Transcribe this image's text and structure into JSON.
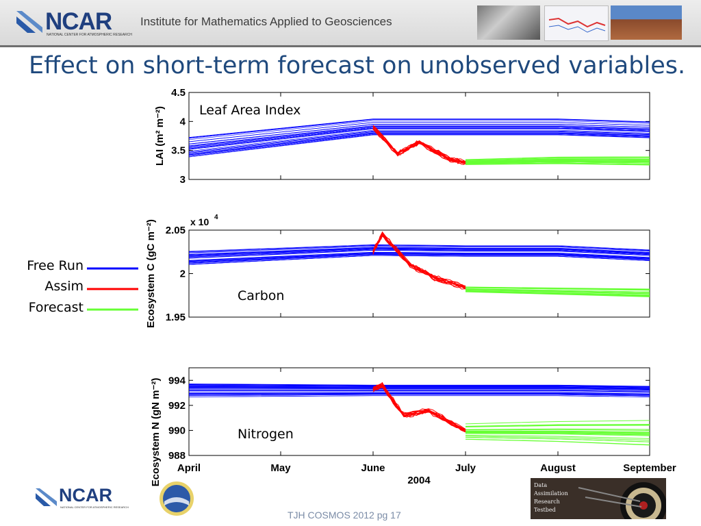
{
  "header": {
    "logo_text": "NCAR",
    "logo_subtext": "NATIONAL CENTER FOR ATMOSPHERIC RESEARCH",
    "institute": "Institute for Mathematics Applied to Geosciences"
  },
  "slide_title": "Effect on short-term forecast on unobserved variables.",
  "legend": {
    "items": [
      {
        "label": "Free Run",
        "color": "#0000ff"
      },
      {
        "label": "Assim",
        "color": "#ff0000"
      },
      {
        "label": "Forecast",
        "color": "#66ff33"
      }
    ]
  },
  "chart_data": {
    "type": "line",
    "x_ticks": [
      "April",
      "May",
      "June",
      "July",
      "August",
      "September"
    ],
    "xlabel": "2004",
    "panels": [
      {
        "annotation": "Leaf Area Index",
        "ylabel": "LAI (m² m⁻²)",
        "ylim": [
          3,
          4.5
        ],
        "yticks": [
          "3",
          "3.5",
          "4",
          "4.5"
        ],
        "series": [
          {
            "name": "Free Run",
            "color": "#0000ff",
            "x": [
              "April",
              "June",
              "July",
              "August",
              "September"
            ],
            "y": [
              3.55,
              3.9,
              3.9,
              3.9,
              3.85
            ]
          },
          {
            "name": "Assim",
            "color": "#ff0000",
            "x": [
              "June",
              "June+8d",
              "June+15d",
              "June+25d",
              "June+30d"
            ],
            "y": [
              3.9,
              3.45,
              3.65,
              3.35,
              3.3
            ]
          },
          {
            "name": "Forecast",
            "color": "#66ff33",
            "x": [
              "July",
              "August",
              "September"
            ],
            "y": [
              3.3,
              3.33,
              3.32
            ]
          }
        ]
      },
      {
        "annotation": "Carbon",
        "ylabel": "Ecosystem C (gC m⁻²)",
        "multiplier": "x 10",
        "multiplier_exp": "4",
        "ylim": [
          1.95,
          2.05
        ],
        "yticks": [
          "1.95",
          "2",
          "2.05"
        ],
        "series": [
          {
            "name": "Free Run",
            "color": "#0000ff",
            "x": [
              "April",
              "June",
              "July",
              "August",
              "September"
            ],
            "y": [
              2.018,
              2.027,
              2.026,
              2.026,
              2.021
            ]
          },
          {
            "name": "Assim",
            "color": "#ff0000",
            "x": [
              "June",
              "June+3d",
              "June+12d",
              "June+20d",
              "June+30d"
            ],
            "y": [
              2.025,
              2.045,
              2.01,
              1.995,
              1.984
            ]
          },
          {
            "name": "Forecast",
            "color": "#66ff33",
            "x": [
              "July",
              "August",
              "September"
            ],
            "y": [
              1.982,
              1.98,
              1.978
            ]
          }
        ]
      },
      {
        "annotation": "Nitrogen",
        "ylabel": "Ecosystem N (gN m⁻²)",
        "ylim": [
          988,
          995
        ],
        "yticks": [
          "988",
          "990",
          "992",
          "994"
        ],
        "series": [
          {
            "name": "Free Run",
            "color": "#0000ff",
            "x": [
              "April",
              "June",
              "July",
              "August",
              "September"
            ],
            "y": [
              993.2,
              993.2,
              993.2,
              993.2,
              993.1
            ]
          },
          {
            "name": "Assim",
            "color": "#ff0000",
            "x": [
              "June",
              "June+3d",
              "June+10d",
              "June+18d",
              "June+30d"
            ],
            "y": [
              993.3,
              993.6,
              991.2,
              991.6,
              990.0
            ]
          },
          {
            "name": "Forecast",
            "color": "#66ff33",
            "x": [
              "July",
              "August",
              "September"
            ],
            "y": [
              989.9,
              989.9,
              989.8
            ]
          }
        ]
      }
    ]
  },
  "footer": "TJH COSMOS 2012 pg 17",
  "darts_card": [
    "Data",
    "Assimilation",
    "Research",
    "Testbed"
  ]
}
